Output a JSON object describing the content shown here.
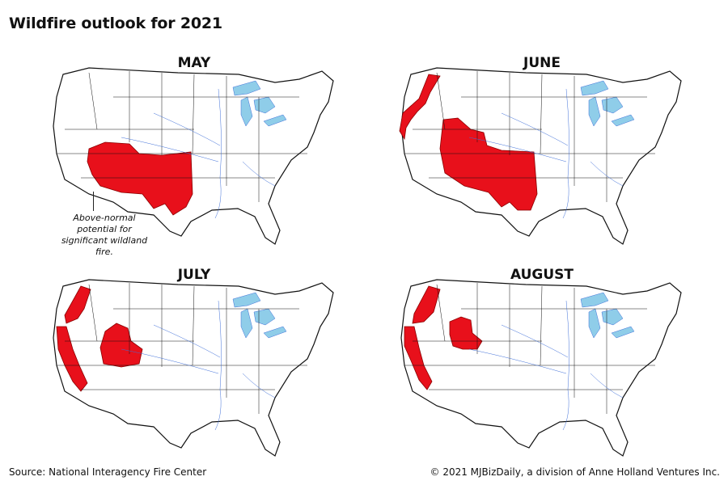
{
  "title": "Wildfire outlook for 2021",
  "colors": {
    "fire": "#e8101b",
    "water": "#8fcde9",
    "rivers": "#3f6fd8",
    "borders": "#111111",
    "land": "#ffffff"
  },
  "maps": [
    {
      "label": "MAY",
      "regions": "southwest"
    },
    {
      "label": "JUNE",
      "regions": "west"
    },
    {
      "label": "JULY",
      "regions": "northwest"
    },
    {
      "label": "AUGUST",
      "regions": "northwest-small"
    }
  ],
  "annotation": "Above-normal potential for significant wildland fire.",
  "source": "Source: National Interagency Fire Center",
  "copyright": "© 2021 MJBizDaily, a division of Anne Holland Ventures Inc."
}
